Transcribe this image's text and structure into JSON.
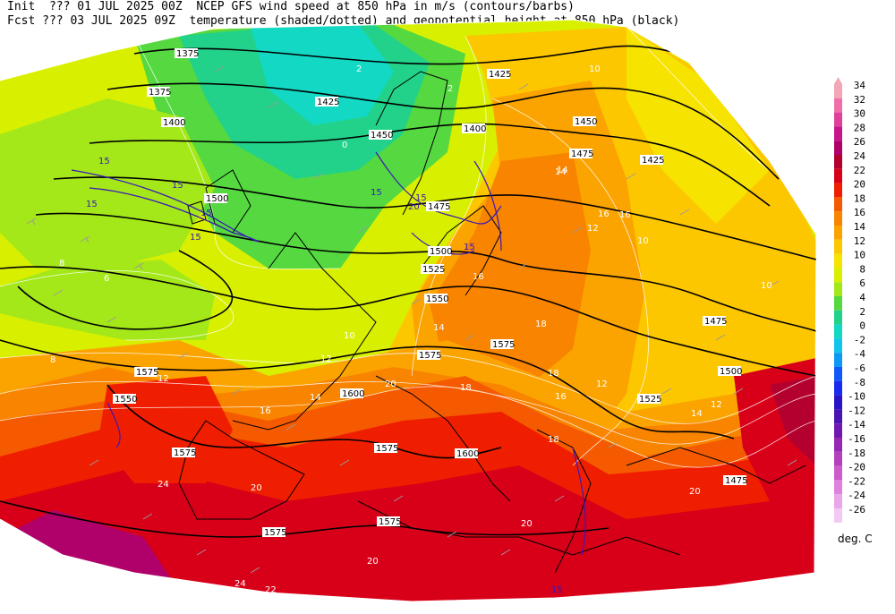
{
  "header": {
    "line1": "Init  ??? 01 JUL 2025 00Z  NCEP GFS wind speed at 850 hPa in m/s (contours/barbs)",
    "line2": "Fcst ??? 03 JUL 2025 09Z  temperature (shaded/dotted) and geopotential height at 850 hPa (black)"
  },
  "legend": {
    "units": "deg. C",
    "levels": [
      {
        "value": "34",
        "color": "#f2a6b6"
      },
      {
        "value": "32",
        "color": "#f06fa8"
      },
      {
        "value": "30",
        "color": "#e0409a"
      },
      {
        "value": "28",
        "color": "#c8168a"
      },
      {
        "value": "26",
        "color": "#b0006a"
      },
      {
        "value": "24",
        "color": "#b4002e"
      },
      {
        "value": "22",
        "color": "#d80018"
      },
      {
        "value": "20",
        "color": "#f01e00"
      },
      {
        "value": "18",
        "color": "#f55a00"
      },
      {
        "value": "16",
        "color": "#f88400"
      },
      {
        "value": "14",
        "color": "#fba400"
      },
      {
        "value": "12",
        "color": "#fdc700"
      },
      {
        "value": "10",
        "color": "#f6e300"
      },
      {
        "value": "8",
        "color": "#d8f000"
      },
      {
        "value": "6",
        "color": "#a4e81a"
      },
      {
        "value": "4",
        "color": "#55d840"
      },
      {
        "value": "2",
        "color": "#22d28a"
      },
      {
        "value": "0",
        "color": "#12d8c4"
      },
      {
        "value": "-2",
        "color": "#10c4ec"
      },
      {
        "value": "-4",
        "color": "#0d98f6"
      },
      {
        "value": "-6",
        "color": "#1058f8"
      },
      {
        "value": "-8",
        "color": "#1a2aee"
      },
      {
        "value": "-10",
        "color": "#2a14c8"
      },
      {
        "value": "-12",
        "color": "#4a14b4"
      },
      {
        "value": "-14",
        "color": "#7018b0"
      },
      {
        "value": "-16",
        "color": "#9628b4"
      },
      {
        "value": "-18",
        "color": "#b440bc"
      },
      {
        "value": "-20",
        "color": "#cc5ccc"
      },
      {
        "value": "-22",
        "color": "#de82de"
      },
      {
        "value": "-24",
        "color": "#eaa6ea"
      },
      {
        "value": "-26",
        "color": "#f4c8f4"
      }
    ]
  },
  "height_labels": [
    "1375",
    "1375",
    "1400",
    "1425",
    "1425",
    "1400",
    "1450",
    "1450",
    "1475",
    "1425",
    "1475",
    "1500",
    "1500",
    "1525",
    "1550",
    "1575",
    "1575",
    "1600",
    "1575",
    "1550",
    "1575",
    "1575",
    "1600",
    "1525",
    "1500",
    "1475",
    "1475",
    "1575",
    "1575"
  ],
  "temp_labels": [
    "8",
    "6",
    "8",
    "12",
    "10",
    "14",
    "14",
    "16",
    "16",
    "18",
    "20",
    "20",
    "22",
    "24",
    "20",
    "18",
    "16",
    "14",
    "12",
    "10",
    "12",
    "10",
    "16",
    "14",
    "12",
    "20",
    "18",
    "20",
    "24",
    "2",
    "0",
    "2",
    "10",
    "12",
    "14",
    "16",
    "18"
  ],
  "wind_labels": [
    "15",
    "15",
    "15",
    "15",
    "15",
    "20",
    "15",
    "15",
    "15",
    "15"
  ]
}
